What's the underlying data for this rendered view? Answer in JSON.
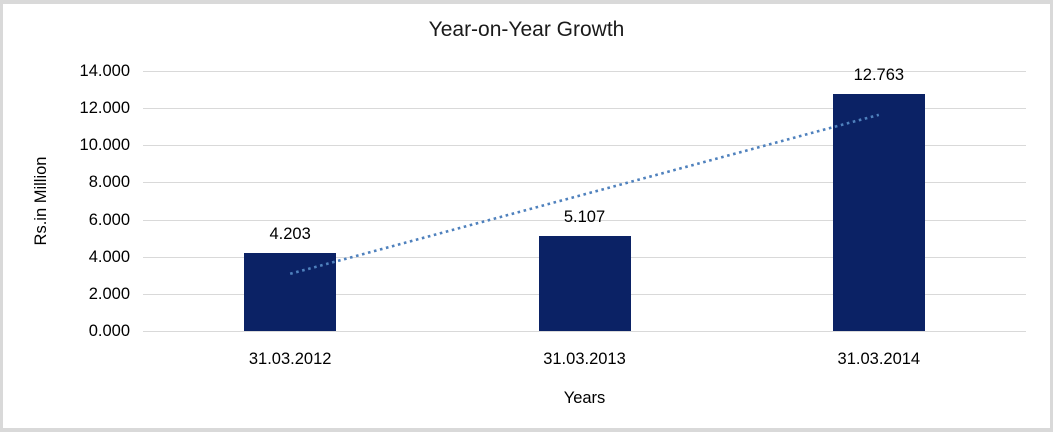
{
  "chart_data": {
    "type": "bar",
    "title": "Year-on-Year Growth",
    "xlabel": "Years",
    "ylabel": "Rs.in Million",
    "categories": [
      "31.03.2012",
      "31.03.2013",
      "31.03.2014"
    ],
    "values": [
      4.203,
      5.107,
      12.763
    ],
    "data_labels": [
      "4.203",
      "5.107",
      "12.763"
    ],
    "y_ticks": [
      "0.000",
      "2.000",
      "4.000",
      "6.000",
      "8.000",
      "10.000",
      "12.000",
      "14.000"
    ],
    "ylim": [
      0,
      14
    ],
    "grid": "horizontal",
    "legend": "none",
    "bar_color": "#0b2265",
    "gridline_color": "#d9d9d9",
    "trendline": {
      "type": "linear",
      "style": "dotted",
      "color": "#4f81bd",
      "start_value": 3.08,
      "end_value": 11.64
    }
  }
}
